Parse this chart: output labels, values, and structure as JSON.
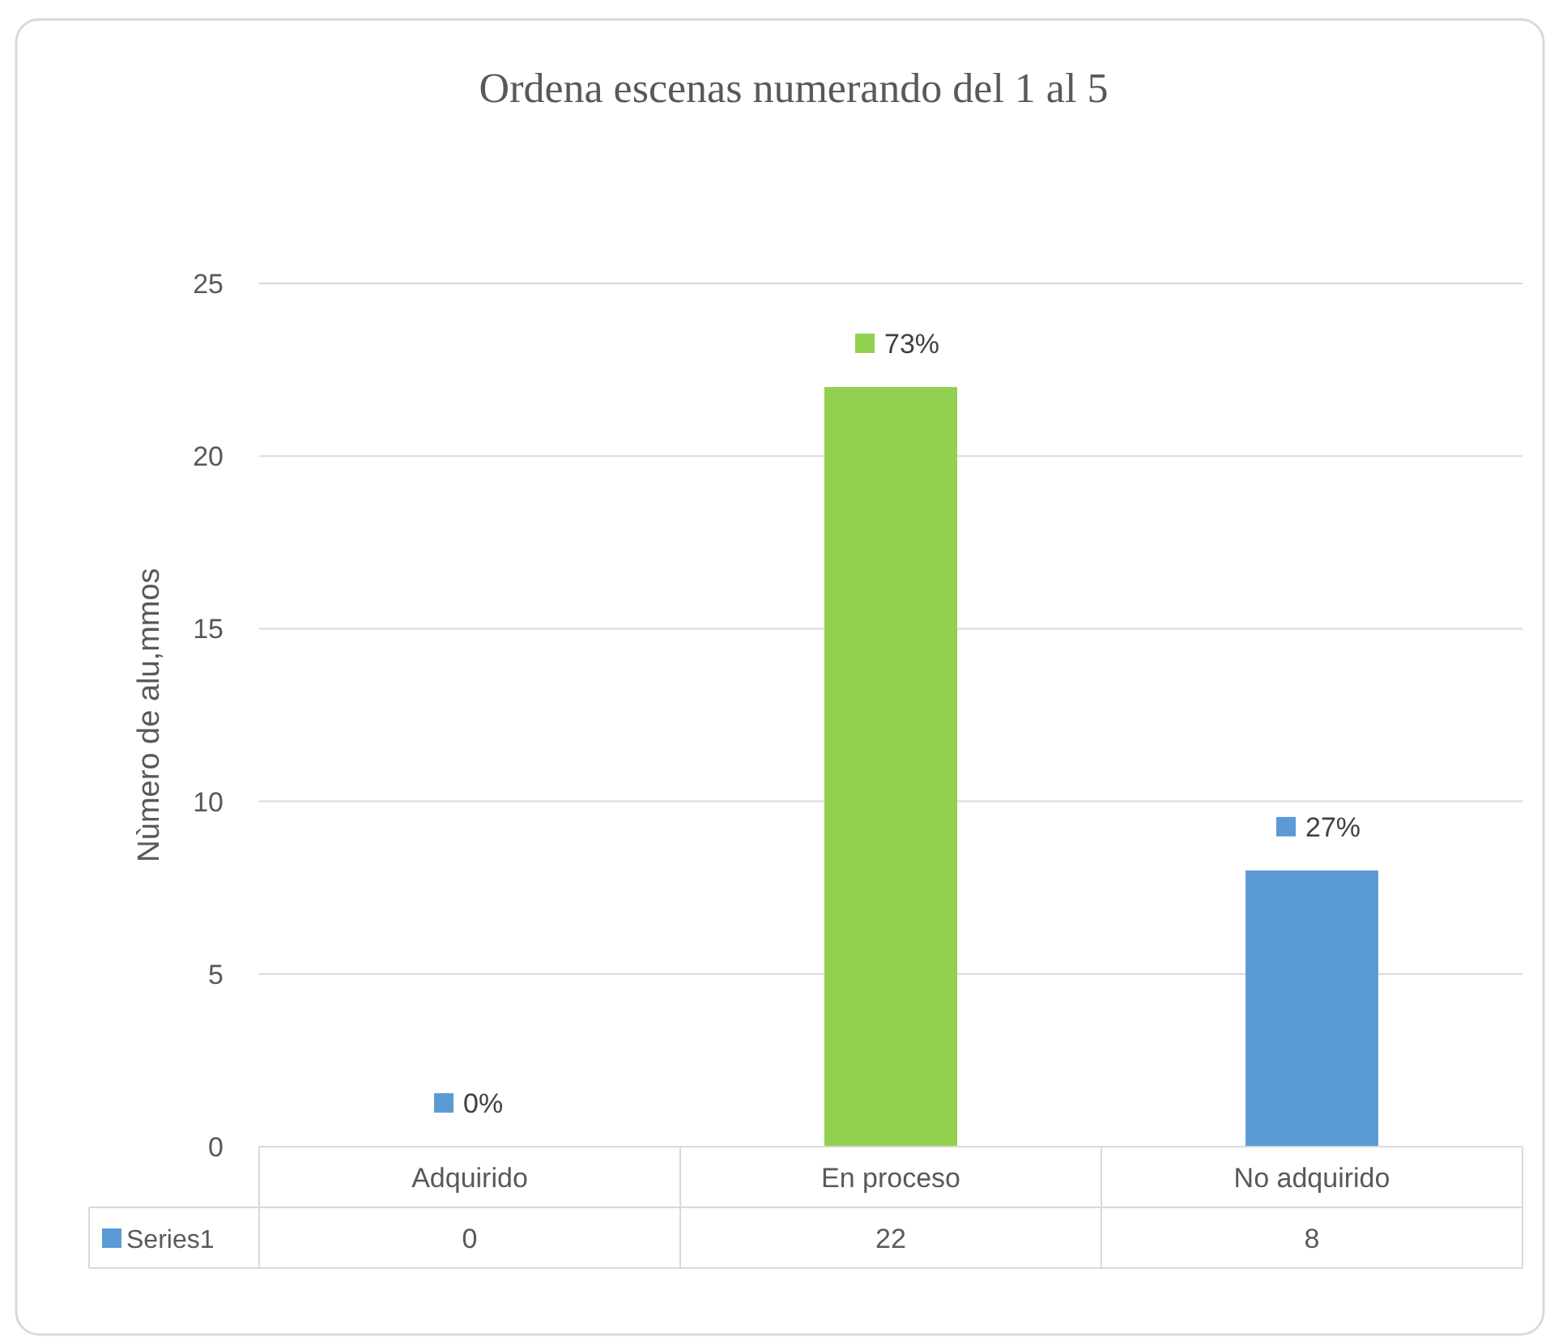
{
  "chart_data": {
    "type": "bar",
    "title": "Ordena escenas numerando del 1 al 5",
    "ylabel": "Nùmero de alu,mmos",
    "categories": [
      "Adquirido",
      "En proceso",
      "No adquirido"
    ],
    "series": [
      {
        "name": "Series1",
        "color": "#5b9bd5",
        "colors": [
          "#5b9bd5",
          "#92d050",
          "#5b9bd5"
        ],
        "values": [
          0,
          22,
          8
        ],
        "value_labels": [
          "0",
          "22",
          "8"
        ]
      }
    ],
    "annotations": [
      {
        "text": "0%",
        "x": "Adquirido",
        "y": 0
      },
      {
        "text": "73%",
        "x": "En proceso",
        "y": 22
      },
      {
        "text": "27%",
        "x": "No adquirido",
        "y": 8
      }
    ],
    "ylim": [
      0,
      25
    ],
    "yticks": [
      0,
      5,
      10,
      15,
      20,
      25
    ],
    "grid": "y",
    "legend": "bottom"
  }
}
